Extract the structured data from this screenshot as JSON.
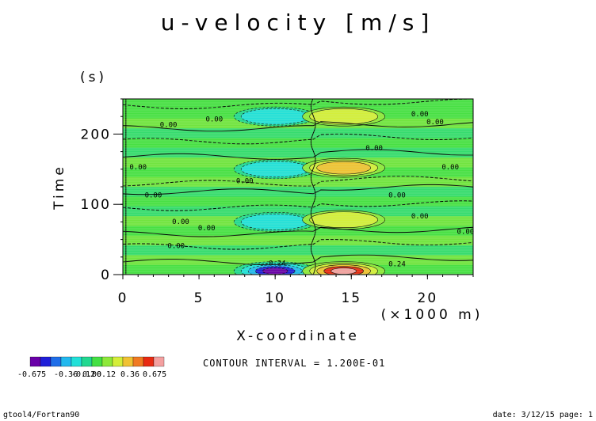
{
  "chart_data": {
    "type": "heatmap",
    "title": "u-velocity [m/s]",
    "xlabel": "X-coordinate",
    "x_unit_label": "(×1000 m)",
    "ylabel": "Time",
    "y_unit_label": "(s)",
    "xlim": [
      0,
      23
    ],
    "ylim": [
      0,
      250
    ],
    "x_ticks": [
      0,
      5,
      10,
      15,
      20
    ],
    "y_ticks": [
      0,
      100,
      200
    ],
    "contour_interval_text": "CONTOUR INTERVAL = 1.200E-01",
    "contour_labels": [
      "0.00",
      "0.24",
      "-0.24"
    ],
    "colorbar": {
      "min_label": "-0.675",
      "max_label": "0.675",
      "tick_labels": [
        "-0.675",
        "-0.36",
        "-0.12",
        "0.00",
        "0.12",
        "0.36",
        "0.675"
      ],
      "colors": [
        "#6a00a8",
        "#1f1fd8",
        "#1f6ee8",
        "#22b8ee",
        "#22e0d8",
        "#22d890",
        "#44e044",
        "#8ee83a",
        "#d4ee3a",
        "#f0c234",
        "#f07a22",
        "#e82a12",
        "#f4a0a0"
      ]
    },
    "features": [
      {
        "sign": "negative",
        "x": 10.0,
        "y": 5,
        "peak": -0.6
      },
      {
        "sign": "positive",
        "x": 14.5,
        "y": 5,
        "peak": 0.65
      },
      {
        "sign": "negative",
        "x": 10.0,
        "y": 75,
        "peak": -0.25
      },
      {
        "sign": "positive",
        "x": 14.5,
        "y": 78,
        "peak": 0.3
      },
      {
        "sign": "negative",
        "x": 10.0,
        "y": 150,
        "peak": -0.3
      },
      {
        "sign": "positive",
        "x": 14.5,
        "y": 152,
        "peak": 0.35
      },
      {
        "sign": "negative",
        "x": 10.0,
        "y": 225,
        "peak": -0.25
      },
      {
        "sign": "positive",
        "x": 14.5,
        "y": 225,
        "peak": 0.3
      }
    ]
  },
  "footer": {
    "left": "gtool4/Fortran90",
    "right": "date: 3/12/15 page: 1"
  }
}
